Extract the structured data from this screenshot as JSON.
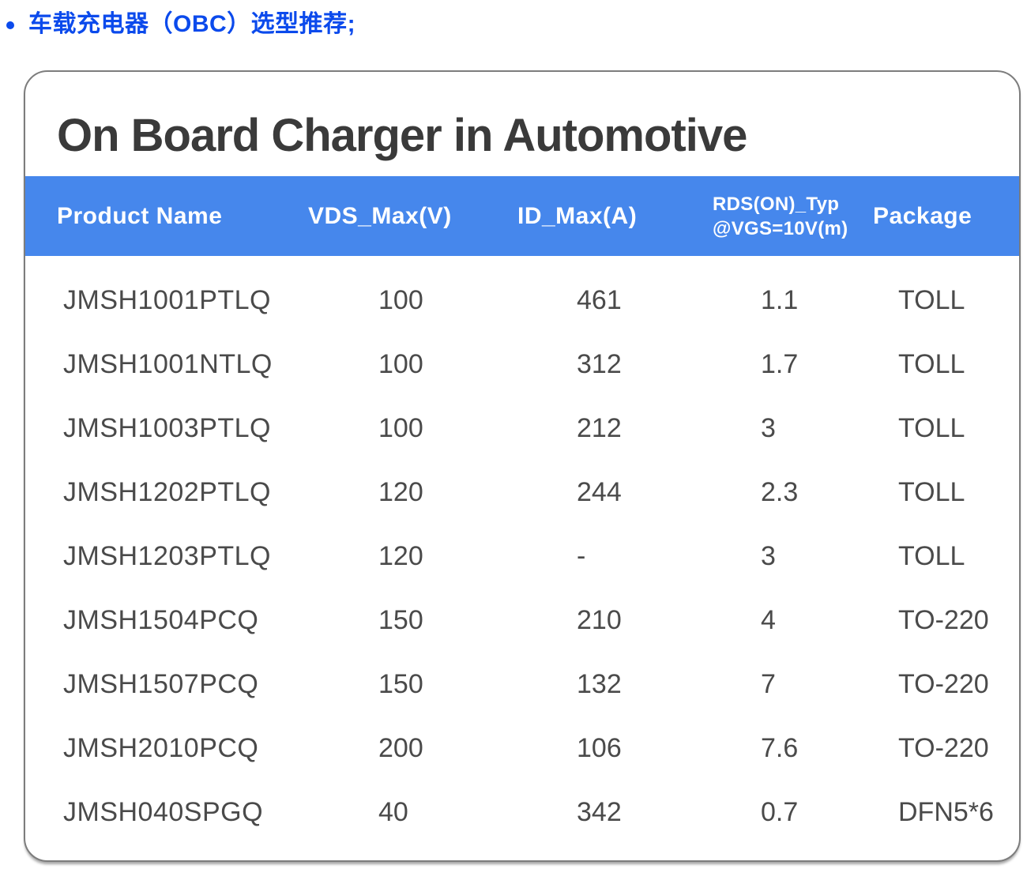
{
  "page": {
    "bullet_heading": "车载充电器（OBC）选型推荐;"
  },
  "card": {
    "title": "On Board Charger in Automotive",
    "table": {
      "header": {
        "product_name": "Product Name",
        "vds_max": "VDS_Max(V)",
        "id_max": "ID_Max(A)",
        "rds_line1": "RDS(ON)_Typ",
        "rds_line2": "@VGS=10V(m)",
        "package": "Package"
      },
      "rows": [
        [
          "JMSH1001PTLQ",
          "100",
          "461",
          "1.1",
          "TOLL"
        ],
        [
          "JMSH1001NTLQ",
          "100",
          "312",
          "1.7",
          "TOLL"
        ],
        [
          "JMSH1003PTLQ",
          "100",
          "212",
          "3",
          "TOLL"
        ],
        [
          "JMSH1202PTLQ",
          "120",
          "244",
          "2.3",
          "TOLL"
        ],
        [
          "JMSH1203PTLQ",
          "120",
          "-",
          "3",
          "TOLL"
        ],
        [
          "JMSH1504PCQ",
          "150",
          "210",
          "4",
          "TO-220"
        ],
        [
          "JMSH1507PCQ",
          "150",
          "132",
          "7",
          "TO-220"
        ],
        [
          "JMSH2010PCQ",
          "200",
          "106",
          "7.6",
          "TO-220"
        ],
        [
          "JMSH040SPGQ",
          "40",
          "342",
          "0.7",
          "DFN5*6"
        ]
      ]
    }
  },
  "colors": {
    "accent_blue": "#0b4aec",
    "header_band_blue": "#4687ec",
    "title_text": "#3a3a3a",
    "body_text": "#4a4a4a",
    "card_border": "#7d7d7d"
  }
}
